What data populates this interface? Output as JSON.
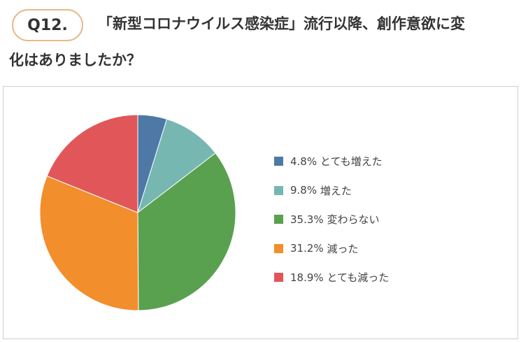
{
  "question": {
    "badge": "Q12.",
    "line1": "「新型コロナウイルス感染症」流行以降、創作意欲に変",
    "line2": "化はありましたか？"
  },
  "chart_data": {
    "type": "pie",
    "start_angle_deg": 0,
    "direction": "clockwise",
    "legend_position": "right",
    "slices": [
      {
        "label": "とても増えた",
        "value": 4.8,
        "display": "4.8%",
        "color": "#4e79a7"
      },
      {
        "label": "増えた",
        "value": 9.8,
        "display": "9.8%",
        "color": "#76b7b2"
      },
      {
        "label": "変わらない",
        "value": 35.3,
        "display": "35.3%",
        "color": "#59a14f"
      },
      {
        "label": "減った",
        "value": 31.2,
        "display": "31.2%",
        "color": "#f28e2b"
      },
      {
        "label": "とても減った",
        "value": 18.9,
        "display": "18.9%",
        "color": "#e15759"
      }
    ]
  }
}
